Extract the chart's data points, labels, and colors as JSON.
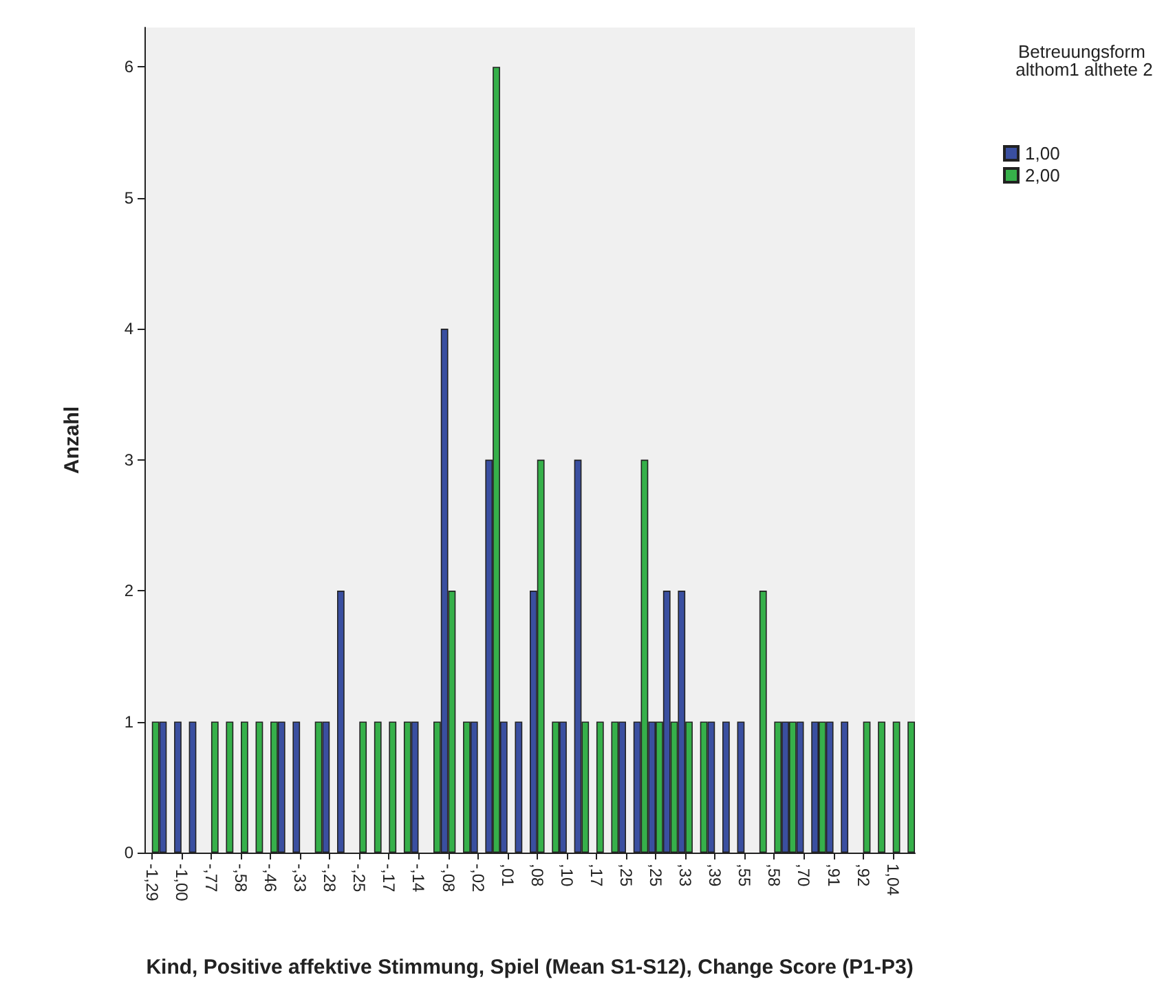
{
  "chart_data": {
    "type": "bar",
    "xlabel": "Kind, Positive affektive Stimmung, Spiel (Mean S1-S12), Change Score (P1-P3)",
    "ylabel": "Anzahl",
    "legend_title": "Betreuungsform althom1 althete 2",
    "legend": "top right",
    "grid": false,
    "categories": [
      "-1,29",
      null,
      "-1,00",
      null,
      "-,77",
      null,
      "-,58",
      null,
      "-,46",
      null,
      "-,33",
      null,
      "-,28",
      null,
      "-,25",
      null,
      "-,17",
      null,
      "-,14",
      null,
      "-,08",
      null,
      "-,02",
      null,
      ",01",
      null,
      ",08",
      null,
      ",10",
      null,
      ",17",
      null,
      ",25",
      null,
      ",25",
      null,
      ",33",
      null,
      ",39",
      null,
      ",55",
      null,
      ",58",
      null,
      ",70",
      null,
      ",91",
      null,
      ",92",
      null,
      "1,04",
      null
    ],
    "series": [
      {
        "name": "1,00",
        "color": "#3a4fa0",
        "values": [
          null,
          1,
          1,
          1,
          null,
          null,
          null,
          null,
          null,
          1,
          1,
          null,
          1,
          2,
          null,
          null,
          null,
          null,
          1,
          null,
          4,
          null,
          1,
          3,
          1,
          1,
          2,
          null,
          1,
          3,
          null,
          null,
          1,
          1,
          1,
          2,
          2,
          null,
          1,
          1,
          1,
          null,
          null,
          1,
          1,
          1,
          1,
          1,
          null,
          null,
          null,
          null
        ]
      },
      {
        "name": "2,00",
        "color": "#36b04a",
        "values": [
          1,
          null,
          null,
          null,
          1,
          1,
          1,
          1,
          1,
          null,
          null,
          1,
          null,
          null,
          1,
          1,
          1,
          1,
          null,
          1,
          2,
          1,
          null,
          6,
          null,
          null,
          3,
          1,
          null,
          1,
          1,
          1,
          null,
          3,
          1,
          1,
          1,
          1,
          null,
          null,
          null,
          2,
          1,
          1,
          null,
          1,
          null,
          null,
          1,
          1,
          1,
          1
        ]
      }
    ],
    "ylim": [
      0,
      6.3
    ],
    "yticks": [
      0,
      1,
      2,
      3,
      4,
      5,
      6
    ]
  }
}
